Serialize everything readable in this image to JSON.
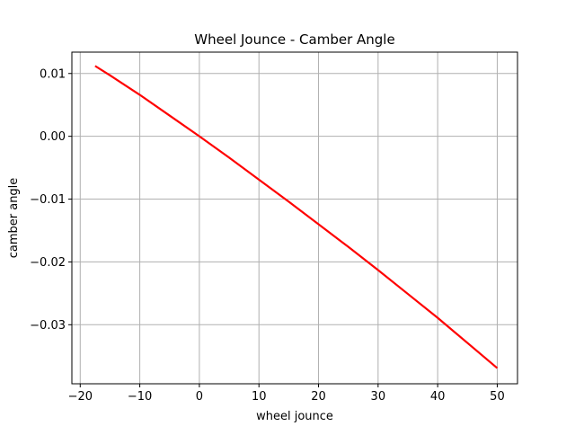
{
  "chart_data": {
    "type": "line",
    "title": "Wheel Jounce - Camber Angle",
    "xlabel": "wheel jounce",
    "ylabel": "camber angle",
    "xlim": [
      -21.4,
      53.4
    ],
    "ylim": [
      -0.0394,
      0.0134
    ],
    "xticks": [
      -20,
      -10,
      0,
      10,
      20,
      30,
      40,
      50
    ],
    "xtick_labels": [
      "−20",
      "−10",
      "0",
      "10",
      "20",
      "30",
      "40",
      "50"
    ],
    "yticks": [
      0.01,
      0.0,
      -0.01,
      -0.02,
      -0.03
    ],
    "ytick_labels": [
      "0.01",
      "0.00",
      "−0.01",
      "−0.02",
      "−0.03"
    ],
    "grid": true,
    "series": [
      {
        "color": "#ff0000",
        "x": [
          -17.5,
          -15,
          -10,
          -5,
          0,
          5,
          10,
          15,
          20,
          25,
          30,
          35,
          40,
          45,
          50
        ],
        "y": [
          0.0112,
          0.0097,
          0.0066,
          0.0033,
          0.0,
          -0.0034,
          -0.0069,
          -0.0104,
          -0.014,
          -0.0176,
          -0.0213,
          -0.0251,
          -0.0289,
          -0.0329,
          -0.0369
        ]
      }
    ]
  }
}
